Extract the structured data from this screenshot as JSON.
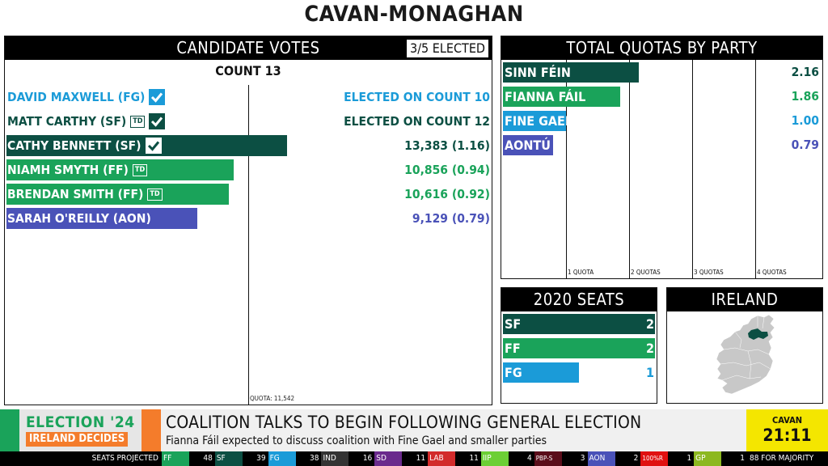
{
  "title": "CAVAN-MONAGHAN",
  "candidates_panel": {
    "header": "CANDIDATE VOTES",
    "elected_badge": "3/5 ELECTED",
    "count_label": "COUNT 13",
    "quota_label": "QUOTA: 11,542",
    "rows": [
      {
        "name": "DAVID MAXWELL (FG)",
        "value": "ELECTED ON COUNT 10",
        "color": "#1b9bd8",
        "bar_fraction": 0,
        "td": false,
        "elected": true
      },
      {
        "name": "MATT CARTHY (SF)",
        "value": "ELECTED ON COUNT 12",
        "color": "#0c4f43",
        "bar_fraction": 0,
        "td": true,
        "elected": true
      },
      {
        "name": "CATHY BENNETT (SF)",
        "value": "13,383 (1.16)",
        "color": "#0c4f43",
        "bar_fraction": 1.16,
        "td": false,
        "elected": true
      },
      {
        "name": "NIAMH SMYTH (FF)",
        "value": "10,856 (0.94)",
        "color": "#1aa35a",
        "bar_fraction": 0.94,
        "td": true,
        "elected": false
      },
      {
        "name": "BRENDAN SMITH (FF)",
        "value": "10,616 (0.92)",
        "color": "#1aa35a",
        "bar_fraction": 0.92,
        "td": true,
        "elected": false
      },
      {
        "name": "SARAH O'REILLY (AON)",
        "value": "9,129 (0.79)",
        "color": "#4a52b8",
        "bar_fraction": 0.79,
        "td": false,
        "elected": false
      }
    ],
    "td_badge_text": "TD"
  },
  "quotas_panel": {
    "header": "TOTAL QUOTAS BY PARTY",
    "ticks": [
      "1 QUOTA",
      "2 QUOTAS",
      "3 QUOTAS",
      "4 QUOTAS"
    ],
    "rows": [
      {
        "party": "SINN FÉIN",
        "quotas": 2.16,
        "value": "2.16",
        "color": "#0c4f43"
      },
      {
        "party": "FIANNA FÁIL",
        "quotas": 1.86,
        "value": "1.86",
        "color": "#1aa35a"
      },
      {
        "party": "FINE GAEL",
        "quotas": 1.0,
        "value": "1.00",
        "color": "#1b9bd8"
      },
      {
        "party": "AONTÚ",
        "quotas": 0.79,
        "value": "0.79",
        "color": "#4a52b8"
      }
    ]
  },
  "seats_panel": {
    "header": "2020 SEATS",
    "rows": [
      {
        "party": "SF",
        "seats": 2,
        "value": "2",
        "color": "#0c4f43"
      },
      {
        "party": "FF",
        "seats": 2,
        "value": "2",
        "color": "#1aa35a"
      },
      {
        "party": "FG",
        "seats": 1,
        "value": "1",
        "color": "#1b9bd8"
      }
    ]
  },
  "map_panel": {
    "header": "IRELAND",
    "highlight_color": "#0c4f43",
    "land_color": "#c8c8c8"
  },
  "ticker": {
    "logo_line1": "ELECTION '24",
    "logo_line2": "IRELAND DECIDES",
    "headline": "COALITION TALKS TO BEGIN FOLLOWING GENERAL ELECTION",
    "subheadline": "Fianna Fáil expected to discuss coalition with Fine Gael and smaller parties",
    "clock_place": "CAVAN",
    "clock_time": "21:11"
  },
  "projection": {
    "label": "SEATS PROJECTED",
    "parties": [
      {
        "name": "FF",
        "seats": "48",
        "color": "#1aa35a"
      },
      {
        "name": "SF",
        "seats": "39",
        "color": "#0c4f43"
      },
      {
        "name": "FG",
        "seats": "38",
        "color": "#1b9bd8"
      },
      {
        "name": "IND",
        "seats": "16",
        "color": "#333333"
      },
      {
        "name": "SD",
        "seats": "11",
        "color": "#6a2a8c"
      },
      {
        "name": "LAB",
        "seats": "11",
        "color": "#d22b2b"
      },
      {
        "name": "IIP",
        "seats": "4",
        "color": "#6ccf35"
      },
      {
        "name": "PBP-S",
        "seats": "3",
        "color": "#5a0d1a"
      },
      {
        "name": "AON",
        "seats": "2",
        "color": "#4a52b8"
      },
      {
        "name": "100%R",
        "seats": "1",
        "color": "#e01010"
      },
      {
        "name": "GP",
        "seats": "1",
        "color": "#8cb820"
      }
    ],
    "majority": "88 FOR MAJORITY"
  }
}
